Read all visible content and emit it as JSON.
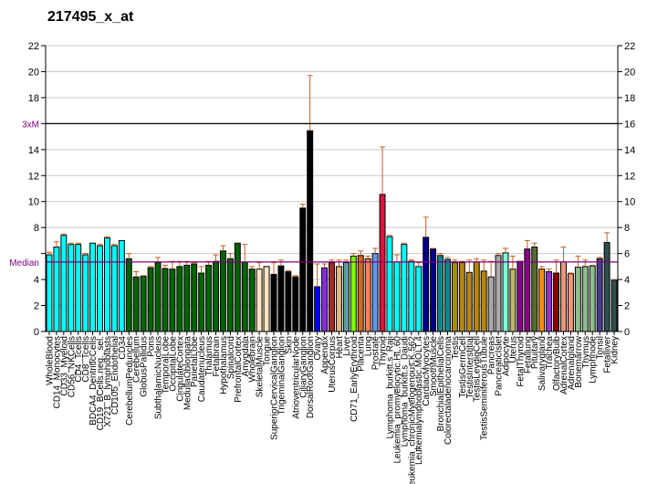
{
  "title": "217495_x_at",
  "chart_data": {
    "type": "bar",
    "title": "217495_x_at",
    "xlabel": "",
    "ylabel": "",
    "ylim": [
      0,
      22
    ],
    "yticks": [
      0,
      2,
      4,
      6,
      8,
      10,
      12,
      14,
      16,
      18,
      20,
      22
    ],
    "grid": true,
    "reference_lines": [
      {
        "label": "3xM",
        "value": 16.0,
        "color": "#000000",
        "label_color": "#800080"
      },
      {
        "label": "Median",
        "value": 5.35,
        "color": "#800080",
        "label_color": "#800080"
      }
    ],
    "error_color": "#C06020",
    "categories": [
      "WholeBlood",
      "CD14_Monocytes",
      "CD33_Myeloid",
      "CD56_NKCells",
      "CD4_Tcells",
      "CD8_Tcells",
      "BDCA4_DentriticCells",
      "CD19_BCells.neg._sel.",
      "X721_B_lymphoblasts",
      "CD105_Endothelial",
      "CD34",
      "CerebellumPeduncles",
      "Cerebellum",
      "GlobusPallidus",
      "Pons",
      "SubthalamicNucleus",
      "TemporalLobe",
      "OccipitalLobe",
      "CingulateCortex",
      "MedullaOblongata",
      "ParietalLobe",
      "Caudatenucleus",
      "Thalamus",
      "Fetalbrain",
      "Hypothalamus",
      "Spinalcord",
      "PrefrontalCortex",
      "Amygdala",
      "Wholebrain",
      "SkeletalMuscle",
      "Tongue",
      "SuperiorCervicalGanglion",
      "TrigeminalGanglion",
      "Skin",
      "AtrioventricularNode",
      "CiliaryGanglion",
      "DorsalRootGanglion",
      "Ovary",
      "Appendix",
      "UterusCorpus",
      "Heart",
      "Liver",
      "CD71_EarlyErythroid",
      "Placenta",
      "Lung",
      "Prostate",
      "Thyroid",
      "Lymphoma_burkitt.s_Raji",
      "Leukemia_promyelocytic.HL.60",
      "Lymphoma_burkitt.s_Daudi",
      "Leukemia_chronicMyelogenous.K.562",
      "Leukemialymphoblastic.MOLT.4",
      "CardiacMyocytes",
      "SmoothMuscle",
      "BronchialEpithelialCells",
      "Colorectaladenocarcinoma",
      "Testis",
      "TestisGermCell",
      "TestisInterstitial",
      "TestisLeydigCell",
      "TestisSeminiferousTubule",
      "Pancreas",
      "PancreaticIslet",
      "Adipocyte",
      "Uterus",
      "FetalThyroid",
      "Fetallung",
      "Pituitary",
      "Salivarygland",
      "Trachea",
      "OlfactoryBulb",
      "AdrenalCortex",
      "Adrenalgland",
      "Bonemarrow",
      "Thymus",
      "Lymphnode",
      "Tonsil",
      "Fetalliver",
      "Kidney"
    ],
    "values": [
      5.9,
      6.5,
      7.4,
      6.7,
      6.7,
      5.9,
      6.8,
      6.6,
      7.2,
      6.6,
      7.0,
      5.6,
      4.2,
      4.25,
      4.9,
      5.3,
      4.85,
      4.8,
      5.0,
      5.1,
      5.2,
      4.5,
      5.1,
      5.4,
      6.2,
      5.6,
      6.8,
      5.35,
      4.8,
      4.8,
      5.0,
      4.4,
      5.05,
      4.6,
      4.2,
      9.5,
      15.45,
      3.45,
      4.9,
      5.3,
      5.0,
      5.3,
      5.8,
      5.85,
      5.6,
      6.0,
      10.55,
      7.3,
      5.35,
      6.7,
      5.4,
      5.0,
      7.25,
      6.35,
      5.85,
      5.55,
      5.3,
      5.3,
      4.55,
      5.35,
      4.65,
      4.2,
      5.85,
      6.05,
      4.8,
      5.4,
      6.35,
      6.5,
      4.8,
      4.6,
      4.5,
      5.35,
      4.45,
      4.95,
      5.0,
      5.05,
      5.6,
      6.85,
      3.95
    ],
    "error_upper": [
      6.1,
      6.9,
      7.5,
      6.8,
      6.8,
      6.0,
      6.8,
      6.7,
      7.3,
      6.7,
      7.0,
      6.0,
      4.6,
      4.3,
      5.0,
      5.7,
      5.1,
      5.4,
      5.4,
      5.4,
      5.3,
      5.0,
      5.4,
      5.9,
      6.6,
      6.0,
      6.8,
      6.7,
      5.0,
      5.3,
      5.0,
      5.3,
      5.5,
      4.7,
      4.3,
      9.8,
      19.7,
      5.2,
      5.2,
      5.5,
      5.5,
      5.5,
      6.0,
      6.2,
      5.8,
      6.4,
      14.2,
      7.4,
      5.9,
      6.8,
      5.5,
      5.3,
      8.8,
      6.4,
      6.0,
      5.7,
      5.5,
      5.4,
      5.5,
      5.6,
      5.5,
      5.4,
      6.0,
      6.4,
      5.8,
      5.4,
      7.0,
      6.8,
      5.0,
      4.8,
      5.5,
      6.5,
      4.5,
      5.8,
      5.5,
      5.1,
      5.7,
      7.6,
      4.0
    ],
    "colors": [
      "#00FFFF",
      "#00FFFF",
      "#00FFFF",
      "#00FFFF",
      "#00FFFF",
      "#00FFFF",
      "#00FFFF",
      "#00FFFF",
      "#00FFFF",
      "#00FFFF",
      "#00FFFF",
      "#006400",
      "#006400",
      "#006400",
      "#006400",
      "#006400",
      "#006400",
      "#006400",
      "#006400",
      "#006400",
      "#006400",
      "#006400",
      "#006400",
      "#006400",
      "#006400",
      "#006400",
      "#006400",
      "#006400",
      "#006400",
      "#FFE4C4",
      "#FFE4C4",
      "#000000",
      "#000000",
      "#000000",
      "#000000",
      "#000000",
      "#000000",
      "#0000FF",
      "#8A2BE2",
      "#A52A2A",
      "#DEB887",
      "#5F9EA0",
      "#7FFF00",
      "#D2691E",
      "#FF7F50",
      "#6495ED",
      "#DC143C",
      "#00FFFF",
      "#00FFFF",
      "#00FFFF",
      "#00FFFF",
      "#00FFFF",
      "#00008B",
      "#00008B",
      "#008B8B",
      "#008B8B",
      "#B8860B",
      "#B8860B",
      "#B8860B",
      "#B8860B",
      "#B8860B",
      "#A9A9A9",
      "#A9A9A9",
      "#7FFFD4",
      "#BDB76B",
      "#8B008B",
      "#8B008B",
      "#556B2F",
      "#FF8C00",
      "#9932CC",
      "#8B0000",
      "#E9967A",
      "#E9967A",
      "#8FBC8F",
      "#8FBC8F",
      "#8FBC8F",
      "#483D8B",
      "#2F4F4F",
      "#2F4F4F"
    ]
  }
}
